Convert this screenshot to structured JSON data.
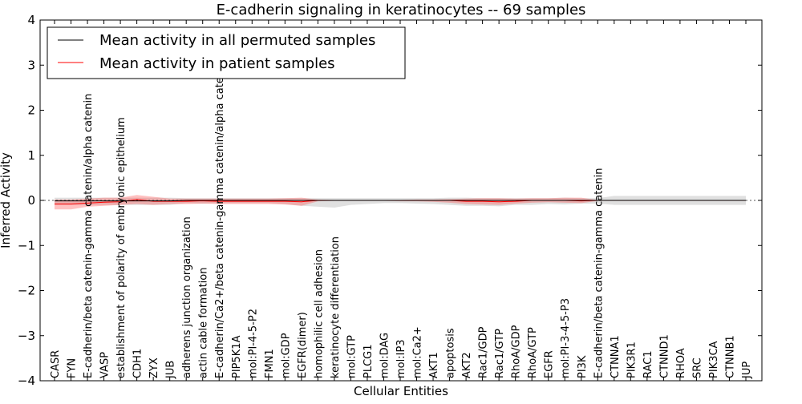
{
  "chart_data": {
    "type": "line",
    "title": "E-cadherin signaling in keratinocytes -- 69 samples",
    "xlabel": "Cellular Entities",
    "ylabel": "Inferred Activity",
    "ylim": [
      -4,
      4
    ],
    "yticks": [
      "−4",
      "−3",
      "−2",
      "−1",
      "0",
      "1",
      "2",
      "3",
      "4"
    ],
    "grid": false,
    "legend_position": "top-left",
    "categories": [
      "CASR",
      "FYN",
      "E-cadherin/beta catenin-gamma catenin/alpha catenin",
      "VASP",
      "establishment of polarity of embryonic epithelium",
      "CDH1",
      "ZYX",
      "JUB",
      "adherens junction organization",
      "actin cable formation",
      "E-cadherin/Ca2+/beta catenin-gamma catenin/alpha catenin",
      "PIP5K1A",
      "mol:PI-4-5-P2",
      "FMN1",
      "mol:GDP",
      "EGFR(dimer)",
      "homophilic cell adhesion",
      "keratinocyte differentiation",
      "mol:GTP",
      "PLCG1",
      "mol:DAG",
      "mol:IP3",
      "mol:Ca2+",
      "AKT1",
      "apoptosis",
      "AKT2",
      "Rac1/GDP",
      "Rac1/GTP",
      "RhoA/GDP",
      "RhoA/GTP",
      "EGFR",
      "mol:PI-3-4-5-P3",
      "PI3K",
      "E-cadherin/beta catenin-gamma catenin",
      "CTNNA1",
      "PIK3R1",
      "RAC1",
      "CTNND1",
      "RHOA",
      "SRC",
      "PIK3CA",
      "CTNNB1",
      "JUP"
    ],
    "series": [
      {
        "name": "Mean activity in all permuted samples",
        "color": "#000000",
        "values": [
          -0.01,
          -0.01,
          -0.01,
          -0.01,
          -0.01,
          -0.01,
          -0.01,
          -0.01,
          0,
          0,
          0,
          0,
          0,
          0,
          0,
          0,
          0,
          0,
          0,
          0,
          0,
          0,
          0,
          0,
          0,
          0,
          0,
          0,
          0,
          0,
          0,
          0,
          0,
          0,
          0,
          0,
          0,
          0,
          0,
          0,
          0,
          0,
          0
        ],
        "band_upper": [
          0.06,
          0.06,
          0.06,
          0.06,
          0.06,
          0.06,
          0.06,
          0.06,
          0.05,
          0.05,
          0.05,
          0.05,
          0.05,
          0.05,
          0.05,
          0.05,
          0.05,
          0.05,
          0.05,
          0.05,
          0.05,
          0.05,
          0.05,
          0.05,
          0.06,
          0.06,
          0.05,
          0.05,
          0.05,
          0.05,
          0.05,
          0.06,
          0.05,
          0.05,
          0.1,
          0.1,
          0.1,
          0.1,
          0.1,
          0.1,
          0.1,
          0.1,
          0.1
        ],
        "band_lower": [
          -0.1,
          -0.1,
          -0.1,
          -0.1,
          -0.1,
          -0.1,
          -0.1,
          -0.1,
          -0.06,
          -0.07,
          -0.06,
          -0.06,
          -0.06,
          -0.06,
          -0.08,
          -0.12,
          -0.14,
          -0.16,
          -0.1,
          -0.08,
          -0.06,
          -0.06,
          -0.07,
          -0.08,
          -0.1,
          -0.12,
          -0.12,
          -0.13,
          -0.1,
          -0.1,
          -0.08,
          -0.09,
          -0.07,
          -0.07,
          -0.1,
          -0.1,
          -0.1,
          -0.1,
          -0.1,
          -0.1,
          -0.1,
          -0.1,
          -0.1
        ]
      },
      {
        "name": "Mean activity in patient samples",
        "color": "#ff0000",
        "values": [
          -0.08,
          -0.08,
          -0.06,
          -0.04,
          -0.03,
          0.02,
          -0.02,
          -0.02,
          -0.02,
          -0.01,
          -0.02,
          -0.02,
          -0.02,
          -0.02,
          -0.02,
          -0.03,
          0,
          0,
          0,
          0,
          0,
          0,
          0,
          0,
          0,
          -0.02,
          -0.02,
          -0.03,
          -0.02,
          0,
          0,
          0,
          -0.01,
          0,
          0,
          0,
          0,
          0,
          0,
          0,
          0,
          0,
          0
        ],
        "band_upper": [
          0.02,
          0.02,
          0.04,
          0.06,
          0.06,
          0.12,
          0.08,
          0.04,
          0.04,
          0.04,
          0.04,
          0.04,
          0.04,
          0.04,
          0.05,
          0.06,
          0.02,
          0.01,
          0.01,
          0.01,
          0.01,
          0.01,
          0.02,
          0.02,
          0.03,
          0.04,
          0.05,
          0.05,
          0.04,
          0.05,
          0.05,
          0.06,
          0.06,
          0.01,
          0.01,
          0.01,
          0.01,
          0.01,
          0.01,
          0.01,
          0.01,
          0.01,
          0.01
        ],
        "band_lower": [
          -0.2,
          -0.2,
          -0.14,
          -0.12,
          -0.1,
          -0.08,
          -0.1,
          -0.08,
          -0.08,
          -0.07,
          -0.08,
          -0.08,
          -0.08,
          -0.08,
          -0.09,
          -0.12,
          -0.02,
          -0.01,
          -0.01,
          -0.01,
          -0.01,
          -0.02,
          -0.02,
          -0.03,
          -0.05,
          -0.08,
          -0.09,
          -0.1,
          -0.07,
          -0.05,
          -0.04,
          -0.05,
          -0.06,
          -0.01,
          -0.01,
          -0.01,
          -0.01,
          -0.01,
          -0.01,
          -0.01,
          -0.01,
          -0.01,
          -0.01
        ]
      }
    ]
  }
}
